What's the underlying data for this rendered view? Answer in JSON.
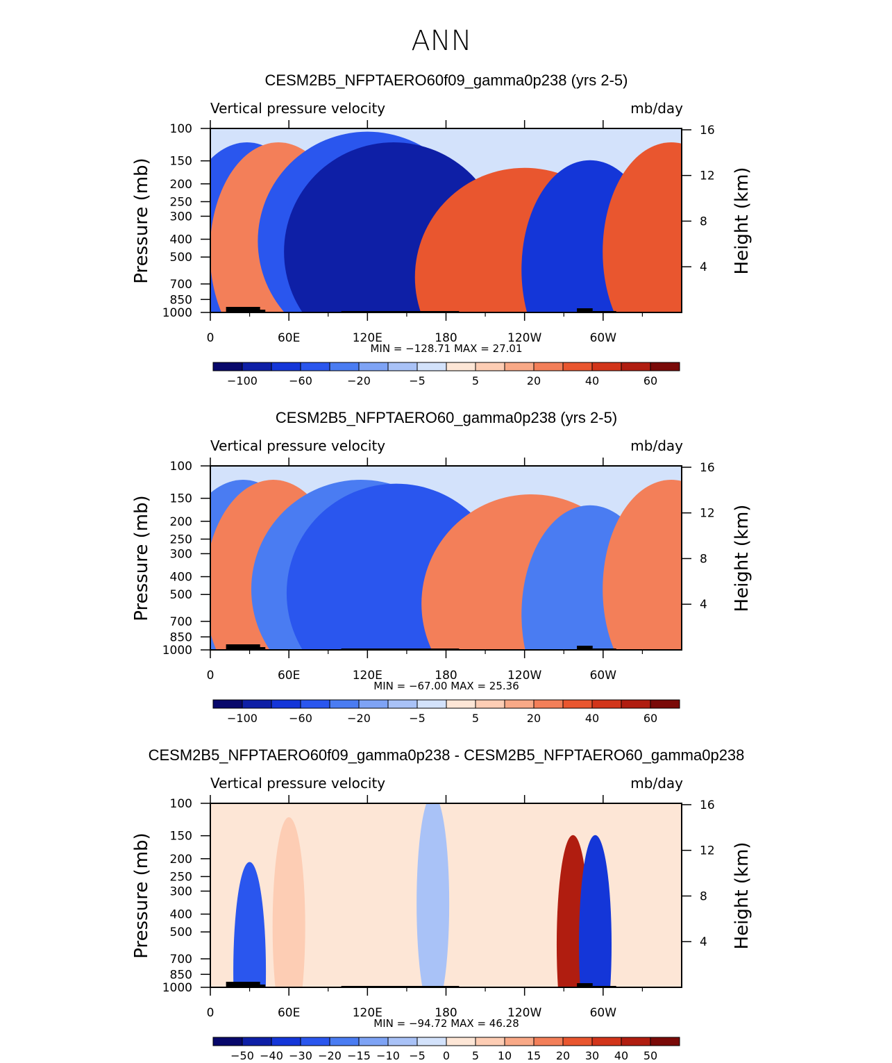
{
  "figure_title": "ANN",
  "colors": {
    "shared_scale": [
      "#08086b",
      "#0e1fa6",
      "#1436d8",
      "#2a56ee",
      "#4a7cf2",
      "#7ea3f5",
      "#a9c2f7",
      "#d3e2fb",
      "#fde6d6",
      "#fdcdb4",
      "#f9a987",
      "#f37f59",
      "#e9562f",
      "#d2351a",
      "#b01d10",
      "#7a0a08"
    ],
    "diff_scale": [
      "#08086b",
      "#0e1fa6",
      "#1436d8",
      "#2a56ee",
      "#4a7cf2",
      "#7ea3f5",
      "#a9c2f7",
      "#d3e2fb",
      "#fde6d6",
      "#fdcdb4",
      "#f9a987",
      "#f37f59",
      "#e9562f",
      "#d2351a",
      "#b01d10",
      "#7a0a08"
    ],
    "terrain": "#000000"
  },
  "chart_data": [
    {
      "type": "heatmap",
      "title": "CESM2B5_NFPTAERO60f09_gamma0p238 (yrs 2-5)",
      "left_label": "Vertical pressure velocity",
      "right_label": "mb/day",
      "ylabel": "Pressure (mb)",
      "ylabel2": "Height (km)",
      "x_ticks": [
        "0",
        "60E",
        "120E",
        "180",
        "120W",
        "60W"
      ],
      "x_tick_degrees": [
        0,
        60,
        120,
        180,
        240,
        300
      ],
      "xlim": [
        0,
        360
      ],
      "y_ticks": [
        "100",
        "150",
        "200",
        "250",
        "300",
        "400",
        "500",
        "700",
        "850",
        "1000"
      ],
      "y_tick_values": [
        100,
        150,
        200,
        250,
        300,
        400,
        500,
        700,
        850,
        1000
      ],
      "ylim": [
        1000,
        100
      ],
      "y2_ticks": [
        "16",
        "12",
        "8",
        "4"
      ],
      "y2_tick_values": [
        16,
        12,
        8,
        4
      ],
      "stats": "MIN = −128.71   MAX =   27.01",
      "min": -128.71,
      "max": 27.01,
      "colorbar_labels": [
        "−100",
        "−60",
        "−20",
        "−5",
        "5",
        "20",
        "40",
        "60"
      ],
      "colorbar_levels": [
        -120,
        -100,
        -80,
        -60,
        -40,
        -20,
        -10,
        -5,
        0,
        5,
        10,
        20,
        30,
        40,
        50,
        60
      ],
      "features": [
        {
          "lon": 28,
          "p": 400,
          "value": -60
        },
        {
          "lon": 52,
          "p": 400,
          "value": 20
        },
        {
          "lon": 120,
          "p": 350,
          "value": -60
        },
        {
          "lon": 140,
          "p": 400,
          "value": -100
        },
        {
          "lon": 240,
          "p": 550,
          "value": 30
        },
        {
          "lon": 290,
          "p": 500,
          "value": -80
        },
        {
          "lon": 352,
          "p": 400,
          "value": 30
        }
      ]
    },
    {
      "type": "heatmap",
      "title": "CESM2B5_NFPTAERO60_gamma0p238 (yrs 2-5)",
      "left_label": "Vertical pressure velocity",
      "right_label": "mb/day",
      "ylabel": "Pressure (mb)",
      "ylabel2": "Height (km)",
      "x_ticks": [
        "0",
        "60E",
        "120E",
        "180",
        "120W",
        "60W"
      ],
      "x_tick_degrees": [
        0,
        60,
        120,
        180,
        240,
        300
      ],
      "xlim": [
        0,
        360
      ],
      "y_ticks": [
        "100",
        "150",
        "200",
        "250",
        "300",
        "400",
        "500",
        "700",
        "850",
        "1000"
      ],
      "y_tick_values": [
        100,
        150,
        200,
        250,
        300,
        400,
        500,
        700,
        850,
        1000
      ],
      "ylim": [
        1000,
        100
      ],
      "y2_ticks": [
        "16",
        "12",
        "8",
        "4"
      ],
      "y2_tick_values": [
        16,
        12,
        8,
        4
      ],
      "stats": "MIN = −67.00   MAX =   25.36",
      "min": -67.0,
      "max": 25.36,
      "colorbar_labels": [
        "−100",
        "−60",
        "−20",
        "−5",
        "5",
        "20",
        "40",
        "60"
      ],
      "colorbar_levels": [
        -120,
        -100,
        -80,
        -60,
        -40,
        -20,
        -10,
        -5,
        0,
        5,
        10,
        20,
        30,
        40,
        50,
        60
      ],
      "features": [
        {
          "lon": 25,
          "p": 400,
          "value": -40
        },
        {
          "lon": 48,
          "p": 400,
          "value": 20
        },
        {
          "lon": 115,
          "p": 400,
          "value": -40
        },
        {
          "lon": 142,
          "p": 420,
          "value": -60
        },
        {
          "lon": 245,
          "p": 480,
          "value": 25
        },
        {
          "lon": 290,
          "p": 550,
          "value": -40
        },
        {
          "lon": 352,
          "p": 400,
          "value": 25
        }
      ]
    },
    {
      "type": "heatmap",
      "title": "CESM2B5_NFPTAERO60f09_gamma0p238 - CESM2B5_NFPTAERO60_gamma0p238",
      "left_label": "Vertical pressure velocity",
      "right_label": "mb/day",
      "ylabel": "Pressure (mb)",
      "ylabel2": "Height (km)",
      "x_ticks": [
        "0",
        "60E",
        "120E",
        "180",
        "120W",
        "60W"
      ],
      "x_tick_degrees": [
        0,
        60,
        120,
        180,
        240,
        300
      ],
      "xlim": [
        0,
        360
      ],
      "y_ticks": [
        "100",
        "150",
        "200",
        "250",
        "300",
        "400",
        "500",
        "700",
        "850",
        "1000"
      ],
      "y_tick_values": [
        100,
        150,
        200,
        250,
        300,
        400,
        500,
        700,
        850,
        1000
      ],
      "ylim": [
        1000,
        100
      ],
      "y2_ticks": [
        "16",
        "12",
        "8",
        "4"
      ],
      "y2_tick_values": [
        16,
        12,
        8,
        4
      ],
      "stats": "MIN = −94.72   MAX =   46.28",
      "min": -94.72,
      "max": 46.28,
      "colorbar_labels": [
        "−50",
        "−40",
        "−30",
        "−20",
        "−15",
        "−10",
        "−5",
        "0",
        "5",
        "10",
        "15",
        "20",
        "30",
        "40",
        "50"
      ],
      "colorbar_levels": [
        -60,
        -50,
        -40,
        -30,
        -20,
        -15,
        -10,
        -5,
        0,
        5,
        10,
        15,
        20,
        30,
        40,
        50
      ],
      "features": [
        {
          "lon": 30,
          "p": 700,
          "value": -30
        },
        {
          "lon": 277,
          "p": 500,
          "value": 40
        },
        {
          "lon": 294,
          "p": 500,
          "value": -40
        },
        {
          "lon": 170,
          "p": 300,
          "value": -10
        },
        {
          "lon": 60,
          "p": 400,
          "value": 5
        }
      ]
    }
  ]
}
